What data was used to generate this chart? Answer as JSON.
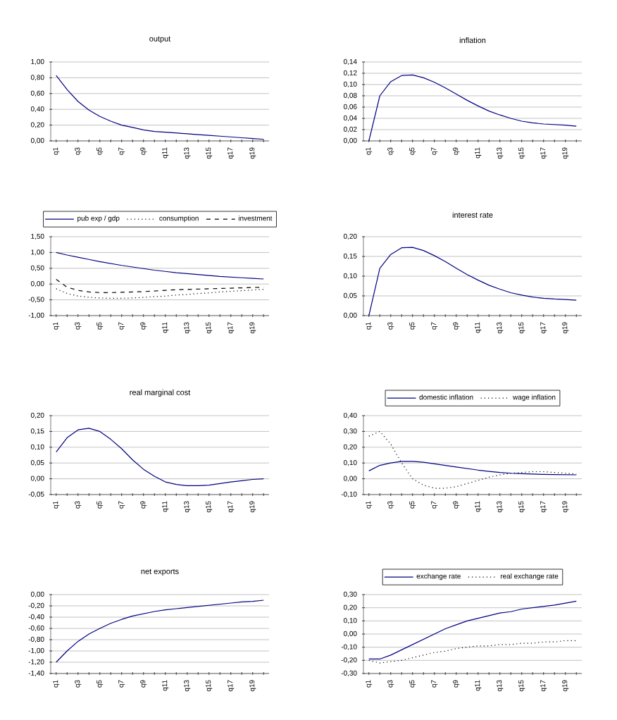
{
  "chart_data": [
    {
      "type": "line",
      "title": "output",
      "categories": [
        "q1",
        null,
        "q3",
        null,
        "q5",
        null,
        "q7",
        null,
        "q9",
        null,
        "q11",
        null,
        "q13",
        null,
        "q15",
        null,
        "q17",
        null,
        "q19",
        null
      ],
      "series": [
        {
          "color": "#000080",
          "line_style": "solid",
          "values": [
            0.83,
            0.65,
            0.5,
            0.39,
            0.31,
            0.25,
            0.2,
            0.17,
            0.14,
            0.12,
            0.11,
            0.1,
            0.09,
            0.08,
            0.07,
            0.06,
            0.05,
            0.04,
            0.03,
            0.02
          ]
        }
      ],
      "ylim": [
        0,
        1
      ],
      "yticks": [
        {
          "value": 0,
          "label": "0,00"
        },
        {
          "value": 0.2,
          "label": "0,20"
        },
        {
          "value": 0.4,
          "label": "0,40"
        },
        {
          "value": 0.6,
          "label": "0,60"
        },
        {
          "value": 0.8,
          "label": "0,80"
        },
        {
          "value": 1,
          "label": "1,00"
        }
      ],
      "grid": "y"
    },
    {
      "type": "line",
      "title": "inflation",
      "categories": [
        "q1",
        null,
        "q3",
        null,
        "q5",
        null,
        "q7",
        null,
        "q9",
        null,
        "q11",
        null,
        "q13",
        null,
        "q15",
        null,
        "q17",
        null,
        "q19",
        null
      ],
      "series": [
        {
          "color": "#000080",
          "line_style": "solid",
          "values": [
            0.0,
            0.08,
            0.105,
            0.116,
            0.117,
            0.112,
            0.104,
            0.094,
            0.083,
            0.072,
            0.062,
            0.053,
            0.046,
            0.04,
            0.035,
            0.032,
            0.03,
            0.029,
            0.028,
            0.026
          ]
        }
      ],
      "ylim": [
        0,
        0.14
      ],
      "yticks": [
        {
          "value": 0,
          "label": "0,00"
        },
        {
          "value": 0.02,
          "label": "0,02"
        },
        {
          "value": 0.04,
          "label": "0,04"
        },
        {
          "value": 0.06,
          "label": "0,06"
        },
        {
          "value": 0.08,
          "label": "0,08"
        },
        {
          "value": 0.1,
          "label": "0,10"
        },
        {
          "value": 0.12,
          "label": "0,12"
        },
        {
          "value": 0.14,
          "label": "0,14"
        }
      ],
      "grid": "y"
    },
    {
      "type": "line",
      "legend": "top",
      "categories": [
        "q1",
        null,
        "q3",
        null,
        "q5",
        null,
        "q7",
        null,
        "q9",
        null,
        "q11",
        null,
        "q13",
        null,
        "q15",
        null,
        "q17",
        null,
        "q19",
        null
      ],
      "series": [
        {
          "name": "pub exp / gdp",
          "color": "#000080",
          "line_style": "solid",
          "values": [
            1.0,
            0.92,
            0.85,
            0.78,
            0.71,
            0.65,
            0.59,
            0.54,
            0.49,
            0.44,
            0.4,
            0.36,
            0.33,
            0.3,
            0.27,
            0.24,
            0.22,
            0.2,
            0.18,
            0.16
          ]
        },
        {
          "name": "consumption",
          "color": "#000000",
          "line_style": "dotted",
          "values": [
            -0.15,
            -0.3,
            -0.38,
            -0.42,
            -0.44,
            -0.45,
            -0.45,
            -0.44,
            -0.42,
            -0.4,
            -0.38,
            -0.35,
            -0.33,
            -0.3,
            -0.28,
            -0.25,
            -0.23,
            -0.21,
            -0.19,
            -0.17
          ]
        },
        {
          "name": "investment",
          "color": "#000000",
          "line_style": "dashed",
          "values": [
            0.15,
            -0.1,
            -0.2,
            -0.25,
            -0.27,
            -0.27,
            -0.26,
            -0.25,
            -0.24,
            -0.22,
            -0.2,
            -0.18,
            -0.17,
            -0.16,
            -0.15,
            -0.14,
            -0.13,
            -0.12,
            -0.11,
            -0.1
          ]
        }
      ],
      "ylim": [
        -1,
        1.5
      ],
      "yticks": [
        {
          "value": -1,
          "label": "-1,00"
        },
        {
          "value": -0.5,
          "label": "-0,50"
        },
        {
          "value": 0,
          "label": "0,00"
        },
        {
          "value": 0.5,
          "label": "0,50"
        },
        {
          "value": 1,
          "label": "1,00"
        },
        {
          "value": 1.5,
          "label": "1,50"
        }
      ],
      "grid": "y"
    },
    {
      "type": "line",
      "title": "interest rate",
      "categories": [
        "q1",
        null,
        "q3",
        null,
        "q5",
        null,
        "q7",
        null,
        "q9",
        null,
        "q11",
        null,
        "q13",
        null,
        "q15",
        null,
        "q17",
        null,
        "q19",
        null
      ],
      "series": [
        {
          "color": "#000080",
          "line_style": "solid",
          "values": [
            0.0,
            0.12,
            0.155,
            0.172,
            0.173,
            0.165,
            0.152,
            0.137,
            0.12,
            0.104,
            0.09,
            0.077,
            0.067,
            0.058,
            0.052,
            0.047,
            0.044,
            0.042,
            0.041,
            0.039
          ]
        }
      ],
      "ylim": [
        0,
        0.2
      ],
      "yticks": [
        {
          "value": 0,
          "label": "0,00"
        },
        {
          "value": 0.05,
          "label": "0,05"
        },
        {
          "value": 0.1,
          "label": "0,10"
        },
        {
          "value": 0.15,
          "label": "0,15"
        },
        {
          "value": 0.2,
          "label": "0,20"
        }
      ],
      "grid": "y"
    },
    {
      "type": "line",
      "title": "real marginal cost",
      "categories": [
        "q1",
        null,
        "q3",
        null,
        "q5",
        null,
        "q7",
        null,
        "q9",
        null,
        "q11",
        null,
        "q13",
        null,
        "q15",
        null,
        "q17",
        null,
        "q19",
        null
      ],
      "series": [
        {
          "color": "#000080",
          "line_style": "solid",
          "values": [
            0.085,
            0.13,
            0.155,
            0.16,
            0.15,
            0.125,
            0.095,
            0.06,
            0.03,
            0.008,
            -0.01,
            -0.018,
            -0.022,
            -0.022,
            -0.02,
            -0.015,
            -0.01,
            -0.006,
            -0.002,
            0.0
          ]
        }
      ],
      "ylim": [
        -0.05,
        0.2
      ],
      "yticks": [
        {
          "value": -0.05,
          "label": "-0,05"
        },
        {
          "value": 0,
          "label": "0,00"
        },
        {
          "value": 0.05,
          "label": "0,05"
        },
        {
          "value": 0.1,
          "label": "0,10"
        },
        {
          "value": 0.15,
          "label": "0,15"
        },
        {
          "value": 0.2,
          "label": "0,20"
        }
      ],
      "grid": "y"
    },
    {
      "type": "line",
      "legend": "top",
      "categories": [
        "q1",
        null,
        "q3",
        null,
        "q5",
        null,
        "q7",
        null,
        "q9",
        null,
        "q11",
        null,
        "q13",
        null,
        "q15",
        null,
        "q17",
        null,
        "q19",
        null
      ],
      "series": [
        {
          "name": "domestic inflation",
          "color": "#000080",
          "line_style": "solid",
          "values": [
            0.05,
            0.085,
            0.1,
            0.11,
            0.11,
            0.105,
            0.095,
            0.085,
            0.075,
            0.065,
            0.055,
            0.047,
            0.04,
            0.035,
            0.032,
            0.03,
            0.028,
            0.027,
            0.026,
            0.025
          ]
        },
        {
          "name": "wage inflation",
          "color": "#000000",
          "line_style": "dotted",
          "values": [
            0.27,
            0.3,
            0.22,
            0.1,
            0.0,
            -0.04,
            -0.06,
            -0.06,
            -0.05,
            -0.03,
            -0.01,
            0.01,
            0.025,
            0.035,
            0.04,
            0.045,
            0.045,
            0.04,
            0.035,
            0.03
          ]
        }
      ],
      "ylim": [
        -0.1,
        0.4
      ],
      "yticks": [
        {
          "value": -0.1,
          "label": "-0,10"
        },
        {
          "value": 0,
          "label": "0,00"
        },
        {
          "value": 0.1,
          "label": "0,10"
        },
        {
          "value": 0.2,
          "label": "0,20"
        },
        {
          "value": 0.3,
          "label": "0,30"
        },
        {
          "value": 0.4,
          "label": "0,40"
        }
      ],
      "grid": "y"
    },
    {
      "type": "line",
      "title": "net exports",
      "categories": [
        "q1",
        null,
        "q3",
        null,
        "q5",
        null,
        "q7",
        null,
        "q9",
        null,
        "q11",
        null,
        "q13",
        null,
        "q15",
        null,
        "q17",
        null,
        "q19",
        null
      ],
      "series": [
        {
          "color": "#000080",
          "line_style": "solid",
          "values": [
            -1.2,
            -1.0,
            -0.83,
            -0.7,
            -0.6,
            -0.51,
            -0.44,
            -0.38,
            -0.34,
            -0.3,
            -0.27,
            -0.25,
            -0.23,
            -0.21,
            -0.19,
            -0.17,
            -0.15,
            -0.13,
            -0.12,
            -0.1
          ]
        }
      ],
      "ylim": [
        -1.4,
        0
      ],
      "yticks": [
        {
          "value": -1.4,
          "label": "-1,40"
        },
        {
          "value": -1.2,
          "label": "-1,20"
        },
        {
          "value": -1,
          "label": "-1,00"
        },
        {
          "value": -0.8,
          "label": "-0,80"
        },
        {
          "value": -0.6,
          "label": "-0,60"
        },
        {
          "value": -0.4,
          "label": "-0,40"
        },
        {
          "value": -0.2,
          "label": "-0,20"
        },
        {
          "value": 0,
          "label": "0,00"
        }
      ],
      "grid": "y"
    },
    {
      "type": "line",
      "legend": "top",
      "categories": [
        "q1",
        null,
        "q3",
        null,
        "q5",
        null,
        "q7",
        null,
        "q9",
        null,
        "q11",
        null,
        "q13",
        null,
        "q15",
        null,
        "q17",
        null,
        "q19",
        null
      ],
      "series": [
        {
          "name": "exchange rate",
          "color": "#000080",
          "line_style": "solid",
          "values": [
            -0.19,
            -0.19,
            -0.16,
            -0.12,
            -0.08,
            -0.04,
            0.0,
            0.04,
            0.07,
            0.1,
            0.12,
            0.14,
            0.16,
            0.17,
            0.19,
            0.2,
            0.21,
            0.22,
            0.235,
            0.25
          ]
        },
        {
          "name": "real exchange rate",
          "color": "#000000",
          "line_style": "dotted",
          "values": [
            -0.2,
            -0.22,
            -0.21,
            -0.2,
            -0.18,
            -0.16,
            -0.14,
            -0.13,
            -0.11,
            -0.1,
            -0.09,
            -0.09,
            -0.08,
            -0.08,
            -0.07,
            -0.07,
            -0.06,
            -0.06,
            -0.05,
            -0.05
          ]
        }
      ],
      "ylim": [
        -0.3,
        0.3
      ],
      "yticks": [
        {
          "value": -0.3,
          "label": "-0,30"
        },
        {
          "value": -0.2,
          "label": "-0,20"
        },
        {
          "value": -0.1,
          "label": "-0,10"
        },
        {
          "value": 0,
          "label": "0,00"
        },
        {
          "value": 0.1,
          "label": "0,10"
        },
        {
          "value": 0.2,
          "label": "0,20"
        },
        {
          "value": 0.3,
          "label": "0,30"
        }
      ],
      "grid": "y"
    }
  ]
}
